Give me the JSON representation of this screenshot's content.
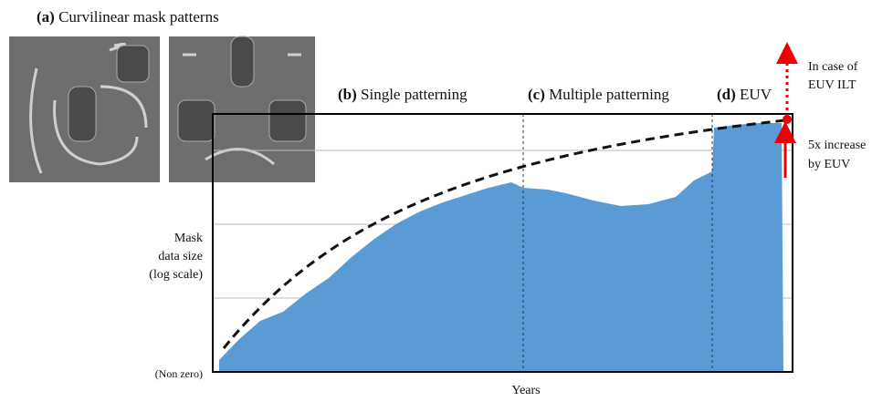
{
  "panel_a": {
    "label": "(a)",
    "title": "Curvilinear mask patterns"
  },
  "phases": [
    {
      "label": "(b)",
      "title": "Single patterning"
    },
    {
      "label": "(c)",
      "title": "Multiple patterning"
    },
    {
      "label": "(d)",
      "title": "EUV"
    }
  ],
  "annotations": {
    "ilt": [
      "In case of",
      "EUV ILT"
    ],
    "euv_increase": [
      "5x increase",
      "by EUV"
    ]
  },
  "y_axis": {
    "label": [
      "Mask",
      "data size",
      "(log scale)"
    ],
    "bottom_label": "(Non zero)"
  },
  "x_axis": {
    "label": "Years"
  }
}
